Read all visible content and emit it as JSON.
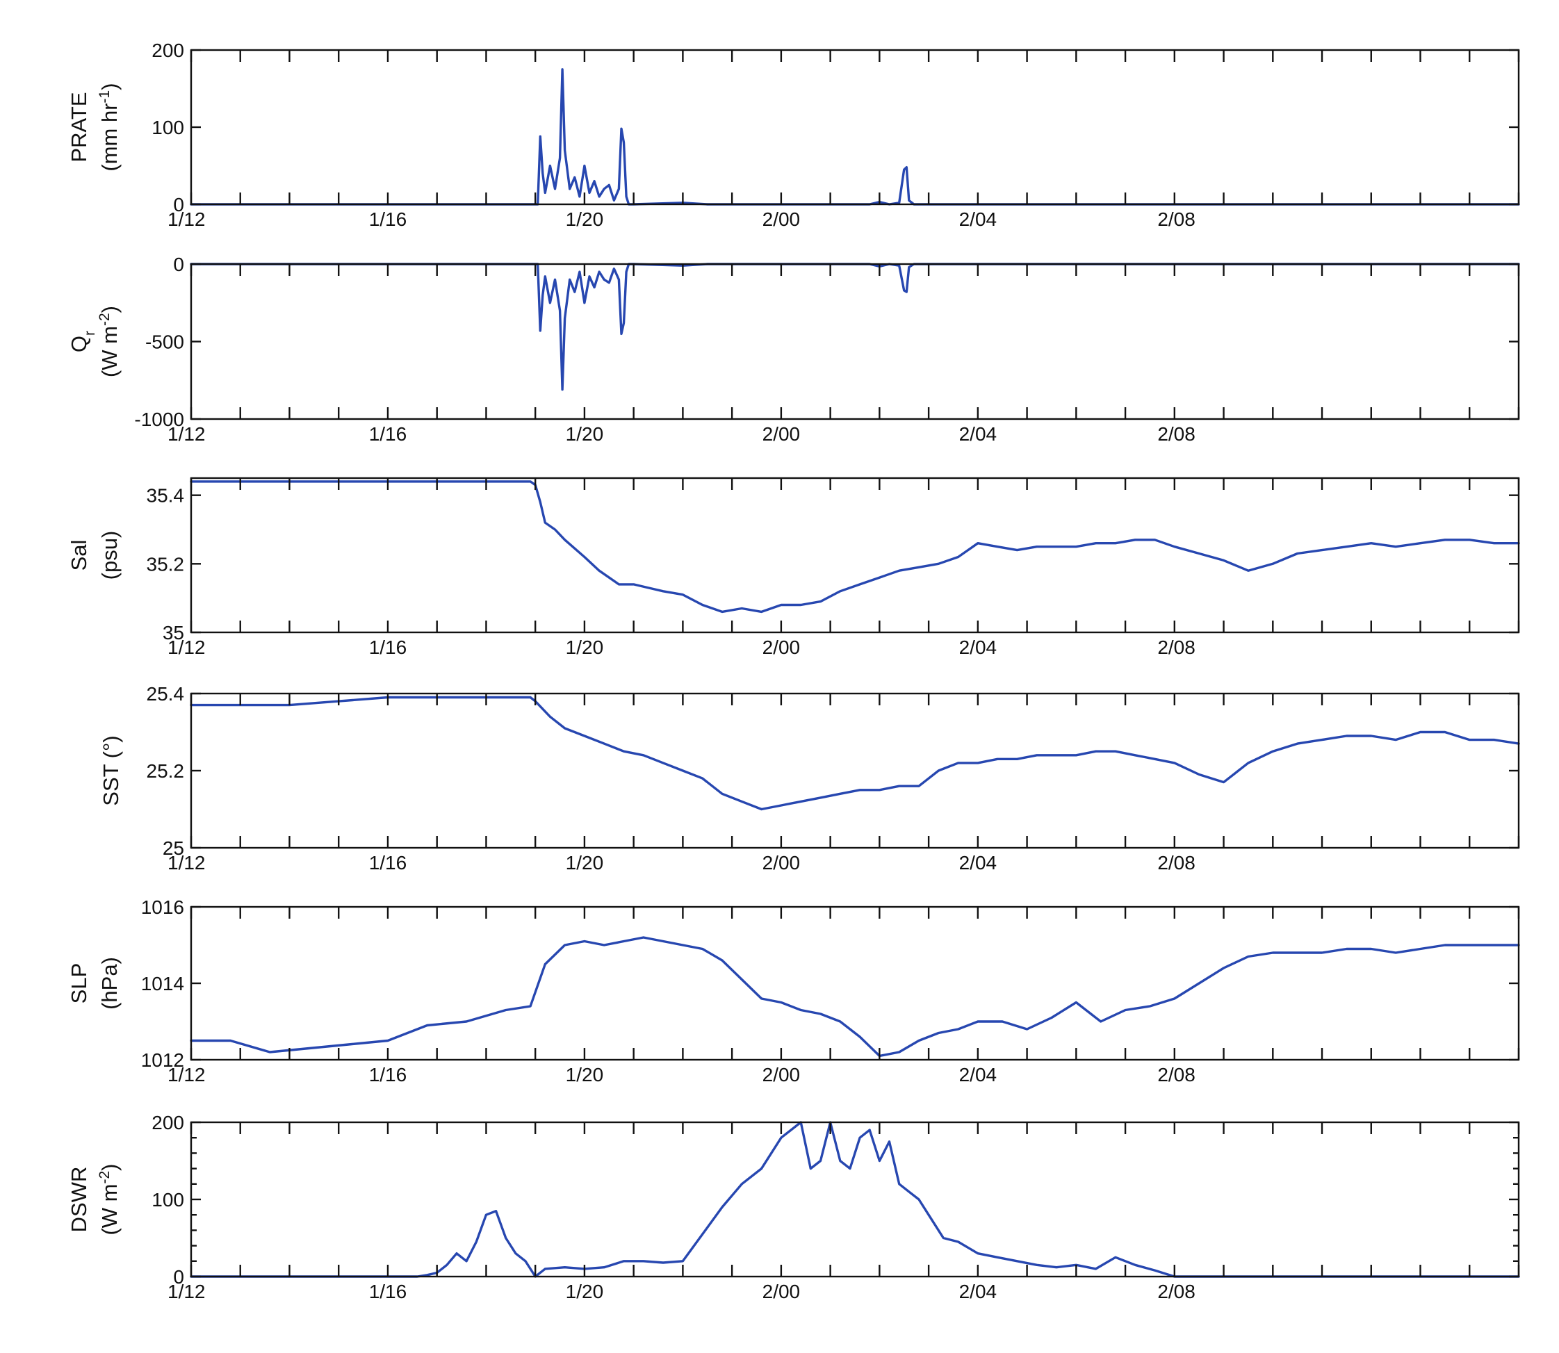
{
  "chart_data": [
    {
      "type": "line",
      "ylabel": [
        "PRATE",
        "(mm hr",
        "-1",
        ")"
      ],
      "ylim": [
        0,
        200
      ],
      "yticks": [
        "0",
        "100",
        "200"
      ],
      "xlim": [
        0,
        27
      ],
      "xticklabels": [
        "1/12",
        "1/16",
        "1/20",
        "2/00",
        "2/04",
        "2/08"
      ],
      "color": "#2747b0",
      "grid": false,
      "series": [
        {
          "x": [
            0,
            7.0,
            7.05,
            7.1,
            7.15,
            7.2,
            7.3,
            7.4,
            7.5,
            7.55,
            7.6,
            7.7,
            7.8,
            7.9,
            8.0,
            8.1,
            8.2,
            8.3,
            8.4,
            8.5,
            8.6,
            8.7,
            8.75,
            8.8,
            8.85,
            8.9,
            9.0,
            10.0,
            10.5,
            11.0,
            13.8,
            14.0,
            14.2,
            14.4,
            14.5,
            14.55,
            14.6,
            14.7,
            15.0,
            27
          ],
          "y": [
            0,
            0,
            0,
            88,
            40,
            15,
            50,
            20,
            60,
            175,
            70,
            20,
            35,
            10,
            50,
            15,
            30,
            10,
            20,
            25,
            5,
            20,
            98,
            80,
            10,
            0,
            0,
            2,
            0,
            0,
            0,
            3,
            0,
            2,
            45,
            48,
            5,
            0,
            0,
            0
          ]
        }
      ]
    },
    {
      "type": "line",
      "ylabel": [
        "Q",
        "r",
        "(W m",
        "-2",
        ")"
      ],
      "ylim": [
        -1000,
        0
      ],
      "yticks": [
        "-1000",
        "-500",
        "0"
      ],
      "xlim": [
        0,
        27
      ],
      "xticklabels": [
        "1/12",
        "1/16",
        "1/20",
        "2/00",
        "2/04",
        "2/08"
      ],
      "color": "#2747b0",
      "grid": false,
      "series": [
        {
          "x": [
            0,
            7.0,
            7.05,
            7.1,
            7.15,
            7.2,
            7.3,
            7.4,
            7.5,
            7.55,
            7.6,
            7.7,
            7.8,
            7.9,
            8.0,
            8.1,
            8.2,
            8.3,
            8.4,
            8.5,
            8.6,
            8.7,
            8.75,
            8.8,
            8.85,
            8.9,
            9.0,
            10.0,
            10.5,
            11.0,
            13.8,
            14.0,
            14.2,
            14.4,
            14.5,
            14.55,
            14.6,
            14.7,
            15.0,
            27
          ],
          "y": [
            0,
            0,
            0,
            -430,
            -200,
            -80,
            -250,
            -100,
            -300,
            -810,
            -350,
            -100,
            -180,
            -50,
            -250,
            -80,
            -150,
            -50,
            -100,
            -120,
            -30,
            -100,
            -450,
            -380,
            -50,
            0,
            0,
            -10,
            0,
            0,
            0,
            -15,
            0,
            -10,
            -170,
            -180,
            -20,
            0,
            0,
            0
          ]
        }
      ]
    },
    {
      "type": "line",
      "ylabel": [
        "Sal",
        "(psu)"
      ],
      "ylim": [
        35,
        35.45
      ],
      "yticks": [
        "35",
        "35.2",
        "35.4"
      ],
      "xlim": [
        0,
        27
      ],
      "xticklabels": [
        "1/12",
        "1/16",
        "1/20",
        "2/00",
        "2/04",
        "2/08"
      ],
      "color": "#2747b0",
      "grid": false,
      "series": [
        {
          "x": [
            0,
            1,
            2,
            3,
            4,
            5,
            6,
            6.9,
            7.0,
            7.1,
            7.2,
            7.4,
            7.6,
            8.0,
            8.3,
            8.7,
            9.0,
            9.3,
            9.6,
            10.0,
            10.4,
            10.8,
            11.2,
            11.6,
            12.0,
            12.4,
            12.8,
            13.2,
            13.6,
            14.0,
            14.4,
            14.8,
            15.2,
            15.6,
            16.0,
            16.4,
            16.8,
            17.2,
            17.6,
            18.0,
            18.4,
            18.8,
            19.2,
            19.6,
            20.0,
            20.5,
            21.0,
            21.5,
            22.0,
            22.5,
            23.0,
            23.5,
            24.0,
            24.5,
            25.0,
            25.5,
            26.0,
            26.5,
            27
          ],
          "y": [
            35.44,
            35.44,
            35.44,
            35.44,
            35.44,
            35.44,
            35.44,
            35.44,
            35.43,
            35.38,
            35.32,
            35.3,
            35.27,
            35.22,
            35.18,
            35.14,
            35.14,
            35.13,
            35.12,
            35.11,
            35.08,
            35.06,
            35.07,
            35.06,
            35.08,
            35.08,
            35.09,
            35.12,
            35.14,
            35.16,
            35.18,
            35.19,
            35.2,
            35.22,
            35.26,
            35.25,
            35.24,
            35.25,
            35.25,
            35.25,
            35.26,
            35.26,
            35.27,
            35.27,
            35.25,
            35.23,
            35.21,
            35.18,
            35.2,
            35.23,
            35.24,
            35.25,
            35.26,
            35.25,
            35.26,
            35.27,
            35.27,
            35.26,
            35.26
          ]
        }
      ]
    },
    {
      "type": "line",
      "ylabel": [
        "SST (°)"
      ],
      "ylim": [
        25,
        25.4
      ],
      "yticks": [
        "25",
        "25.2",
        "25.4"
      ],
      "xlim": [
        0,
        27
      ],
      "xticklabels": [
        "1/12",
        "1/16",
        "1/20",
        "2/00",
        "2/04",
        "2/08"
      ],
      "color": "#2747b0",
      "grid": false,
      "series": [
        {
          "x": [
            0,
            1,
            2,
            3,
            4,
            5,
            6,
            6.9,
            7.0,
            7.3,
            7.6,
            8.0,
            8.4,
            8.8,
            9.2,
            9.6,
            10.0,
            10.4,
            10.8,
            11.2,
            11.6,
            12.0,
            12.4,
            12.8,
            13.2,
            13.6,
            14.0,
            14.4,
            14.8,
            15.2,
            15.6,
            16.0,
            16.4,
            16.8,
            17.2,
            17.6,
            18.0,
            18.4,
            18.8,
            19.2,
            19.6,
            20.0,
            20.5,
            21.0,
            21.5,
            22.0,
            22.5,
            23.0,
            23.5,
            24.0,
            24.5,
            25.0,
            25.5,
            26.0,
            26.5,
            27
          ],
          "y": [
            25.37,
            25.37,
            25.37,
            25.38,
            25.39,
            25.39,
            25.39,
            25.39,
            25.38,
            25.34,
            25.31,
            25.29,
            25.27,
            25.25,
            25.24,
            25.22,
            25.2,
            25.18,
            25.14,
            25.12,
            25.1,
            25.11,
            25.12,
            25.13,
            25.14,
            25.15,
            25.15,
            25.16,
            25.16,
            25.2,
            25.22,
            25.22,
            25.23,
            25.23,
            25.24,
            25.24,
            25.24,
            25.25,
            25.25,
            25.24,
            25.23,
            25.22,
            25.19,
            25.17,
            25.22,
            25.25,
            25.27,
            25.28,
            25.29,
            25.29,
            25.28,
            25.3,
            25.3,
            25.28,
            25.28,
            25.27
          ]
        }
      ]
    },
    {
      "type": "line",
      "ylabel": [
        "SLP",
        "(hPa)"
      ],
      "ylim": [
        1012,
        1016
      ],
      "yticks": [
        "1012",
        "1014",
        "1016"
      ],
      "xlim": [
        0,
        27
      ],
      "xticklabels": [
        "1/12",
        "1/16",
        "1/20",
        "2/00",
        "2/04",
        "2/08"
      ],
      "color": "#2747b0",
      "grid": false,
      "series": [
        {
          "x": [
            0,
            0.8,
            1.6,
            2.4,
            3.2,
            4.0,
            4.8,
            5.6,
            6.4,
            6.9,
            7.2,
            7.6,
            8.0,
            8.4,
            8.8,
            9.2,
            9.6,
            10.0,
            10.4,
            10.8,
            11.2,
            11.6,
            12.0,
            12.4,
            12.8,
            13.2,
            13.6,
            14.0,
            14.4,
            14.8,
            15.2,
            15.6,
            16.0,
            16.5,
            17.0,
            17.5,
            18.0,
            18.5,
            19.0,
            19.5,
            20.0,
            20.5,
            21.0,
            21.5,
            22.0,
            22.5,
            23.0,
            23.5,
            24.0,
            24.5,
            25.0,
            25.5,
            26.0,
            26.5,
            27
          ],
          "y": [
            1012.5,
            1012.5,
            1012.2,
            1012.3,
            1012.4,
            1012.5,
            1012.9,
            1013.0,
            1013.3,
            1013.4,
            1014.5,
            1015.0,
            1015.1,
            1015.0,
            1015.1,
            1015.2,
            1015.1,
            1015.0,
            1014.9,
            1014.6,
            1014.1,
            1013.6,
            1013.5,
            1013.3,
            1013.2,
            1013.0,
            1012.6,
            1012.1,
            1012.2,
            1012.5,
            1012.7,
            1012.8,
            1013.0,
            1013.0,
            1012.8,
            1013.1,
            1013.5,
            1013.0,
            1013.3,
            1013.4,
            1013.6,
            1014.0,
            1014.4,
            1014.7,
            1014.8,
            1014.8,
            1014.8,
            1014.9,
            1014.9,
            1014.8,
            1014.9,
            1015.0,
            1015.0,
            1015.0,
            1015.0
          ]
        }
      ]
    },
    {
      "type": "line",
      "ylabel": [
        "DSWR",
        "(W m",
        "-2",
        ")"
      ],
      "ylim": [
        0,
        200
      ],
      "yticks": [
        "0",
        "100",
        "200"
      ],
      "xlim": [
        0,
        27
      ],
      "xticklabels": [
        "1/12",
        "1/16",
        "1/20",
        "2/00",
        "2/04",
        "2/08"
      ],
      "color": "#2747b0",
      "grid": false,
      "series": [
        {
          "x": [
            0,
            4.6,
            4.8,
            5.0,
            5.2,
            5.4,
            5.6,
            5.8,
            6.0,
            6.2,
            6.4,
            6.6,
            6.8,
            7.0,
            7.2,
            7.6,
            8.0,
            8.4,
            8.8,
            9.2,
            9.6,
            10.0,
            10.4,
            10.8,
            11.2,
            11.6,
            12.0,
            12.4,
            12.6,
            12.8,
            13.0,
            13.2,
            13.4,
            13.6,
            13.8,
            14.0,
            14.2,
            14.4,
            14.6,
            14.8,
            15.0,
            15.3,
            15.6,
            16.0,
            16.4,
            16.8,
            17.2,
            17.6,
            18.0,
            18.4,
            18.8,
            19.2,
            19.6,
            20.0,
            27
          ],
          "y": [
            0,
            0,
            2,
            5,
            15,
            30,
            20,
            45,
            80,
            85,
            50,
            30,
            20,
            0,
            10,
            12,
            10,
            12,
            20,
            20,
            18,
            20,
            55,
            90,
            120,
            140,
            180,
            205,
            140,
            150,
            205,
            150,
            140,
            180,
            190,
            150,
            175,
            120,
            110,
            100,
            80,
            50,
            45,
            30,
            25,
            20,
            15,
            12,
            15,
            10,
            25,
            15,
            8,
            0,
            0
          ]
        }
      ]
    }
  ]
}
